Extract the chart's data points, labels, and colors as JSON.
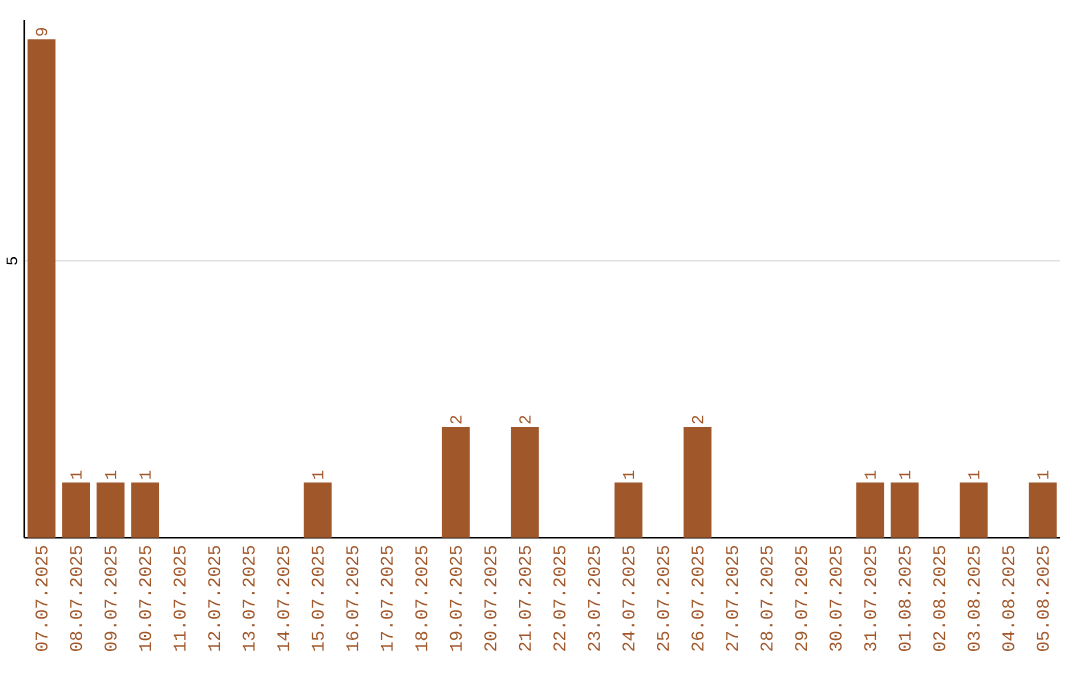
{
  "chart_data": {
    "type": "bar",
    "categories": [
      "07.07.2025",
      "08.07.2025",
      "09.07.2025",
      "10.07.2025",
      "11.07.2025",
      "12.07.2025",
      "13.07.2025",
      "14.07.2025",
      "15.07.2025",
      "16.07.2025",
      "17.07.2025",
      "18.07.2025",
      "19.07.2025",
      "20.07.2025",
      "21.07.2025",
      "22.07.2025",
      "23.07.2025",
      "24.07.2025",
      "25.07.2025",
      "26.07.2025",
      "27.07.2025",
      "28.07.2025",
      "29.07.2025",
      "30.07.2025",
      "31.07.2025",
      "01.08.2025",
      "02.08.2025",
      "03.08.2025",
      "04.08.2025",
      "05.08.2025"
    ],
    "values": [
      9,
      1,
      1,
      1,
      0,
      0,
      0,
      0,
      1,
      0,
      0,
      0,
      2,
      0,
      2,
      0,
      0,
      1,
      0,
      2,
      0,
      0,
      0,
      0,
      1,
      1,
      0,
      1,
      0,
      1
    ],
    "value_labels": [
      "9",
      "1",
      "1",
      "1",
      null,
      null,
      null,
      null,
      "1",
      null,
      null,
      null,
      "2",
      null,
      "2",
      null,
      null,
      "1",
      null,
      "2",
      null,
      null,
      null,
      null,
      "1",
      "1",
      null,
      "1",
      null,
      "1"
    ],
    "color": "#a0572a",
    "ylim": [
      0,
      9.35
    ],
    "yticks": [
      5
    ],
    "grid": "y"
  }
}
